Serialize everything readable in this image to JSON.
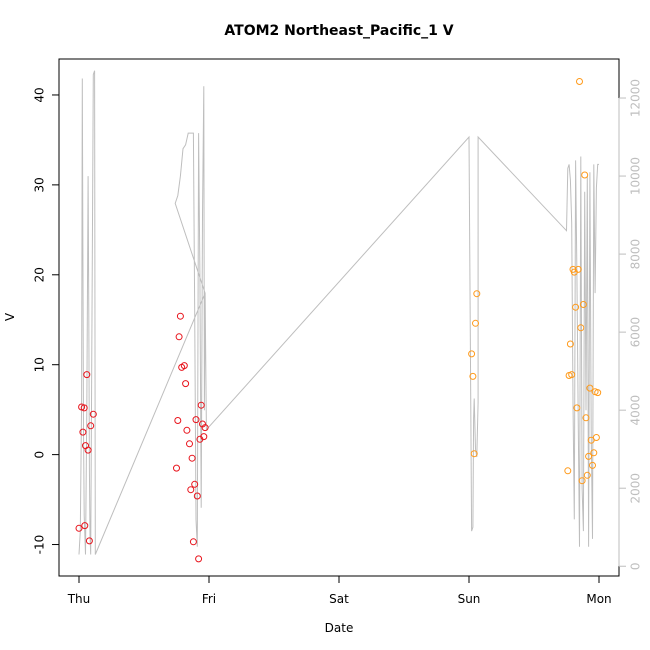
{
  "chart_data": {
    "type": "scatter",
    "title": "ATOM2 Northeast_Pacific_1 V",
    "xlabel": "Date",
    "ylabel": "V",
    "x_ticks": [
      "Thu",
      "Fri",
      "Sat",
      "Sun",
      "Mon"
    ],
    "x_range_days": [
      0,
      4
    ],
    "ylim": [
      -13.5,
      44
    ],
    "y_ticks": [
      -10,
      0,
      10,
      20,
      30,
      40
    ],
    "y2lim": [
      -250,
      13000
    ],
    "y2_ticks": [
      0,
      2000,
      4000,
      6000,
      8000,
      10000,
      12000
    ],
    "colors": {
      "red_points": "#e8141c",
      "orange_points": "#ff9a1a",
      "line": "#bebebe",
      "right_axis_text": "#bebebe"
    },
    "points_red": [
      [
        0.0,
        -8.2
      ],
      [
        0.02,
        5.3
      ],
      [
        0.03,
        2.5
      ],
      [
        0.04,
        5.2
      ],
      [
        0.045,
        -7.9
      ],
      [
        0.05,
        1.0
      ],
      [
        0.06,
        8.9
      ],
      [
        0.07,
        0.5
      ],
      [
        0.08,
        -9.6
      ],
      [
        0.09,
        3.2
      ],
      [
        0.11,
        4.5
      ],
      [
        0.75,
        -1.5
      ],
      [
        0.76,
        3.8
      ],
      [
        0.77,
        13.1
      ],
      [
        0.78,
        15.4
      ],
      [
        0.79,
        9.7
      ],
      [
        0.81,
        9.9
      ],
      [
        0.82,
        7.9
      ],
      [
        0.83,
        2.7
      ],
      [
        0.85,
        1.2
      ],
      [
        0.86,
        -3.9
      ],
      [
        0.87,
        -0.4
      ],
      [
        0.88,
        -9.7
      ],
      [
        0.89,
        -3.3
      ],
      [
        0.9,
        3.9
      ],
      [
        0.91,
        -4.6
      ],
      [
        0.92,
        -11.6
      ],
      [
        0.93,
        1.7
      ],
      [
        0.94,
        5.5
      ],
      [
        0.95,
        3.4
      ],
      [
        0.96,
        2.0
      ],
      [
        0.97,
        3.0
      ]
    ],
    "points_orange": [
      [
        3.02,
        11.2
      ],
      [
        3.03,
        8.7
      ],
      [
        3.04,
        0.1
      ],
      [
        3.05,
        14.6
      ],
      [
        3.06,
        17.9
      ],
      [
        3.76,
        -1.8
      ],
      [
        3.77,
        8.8
      ],
      [
        3.78,
        12.3
      ],
      [
        3.79,
        8.9
      ],
      [
        3.8,
        20.6
      ],
      [
        3.81,
        20.3
      ],
      [
        3.82,
        16.4
      ],
      [
        3.83,
        5.2
      ],
      [
        3.84,
        20.6
      ],
      [
        3.85,
        41.5
      ],
      [
        3.86,
        14.1
      ],
      [
        3.87,
        -2.9
      ],
      [
        3.88,
        16.7
      ],
      [
        3.89,
        31.1
      ],
      [
        3.9,
        4.1
      ],
      [
        3.91,
        -2.3
      ],
      [
        3.92,
        -0.2
      ],
      [
        3.93,
        7.4
      ],
      [
        3.94,
        1.6
      ],
      [
        3.95,
        -1.2
      ],
      [
        3.96,
        0.2
      ],
      [
        3.97,
        7.0
      ],
      [
        3.98,
        1.9
      ],
      [
        3.99,
        6.9
      ]
    ],
    "line_secondary": [
      [
        0.0,
        300
      ],
      [
        0.01,
        900
      ],
      [
        0.02,
        4200
      ],
      [
        0.025,
        12500
      ],
      [
        0.03,
        8000
      ],
      [
        0.035,
        3500
      ],
      [
        0.04,
        1300
      ],
      [
        0.05,
        300
      ],
      [
        0.06,
        4000
      ],
      [
        0.07,
        10000
      ],
      [
        0.075,
        6500
      ],
      [
        0.08,
        2500
      ],
      [
        0.085,
        800
      ],
      [
        0.09,
        300
      ],
      [
        0.11,
        12600
      ],
      [
        0.12,
        12700
      ],
      [
        0.125,
        300
      ],
      [
        0.125,
        300
      ],
      [
        0.97,
        7000
      ],
      [
        0.74,
        9300
      ],
      [
        0.76,
        9500
      ],
      [
        0.78,
        10000
      ],
      [
        0.8,
        10700
      ],
      [
        0.82,
        10800
      ],
      [
        0.84,
        11100
      ],
      [
        0.86,
        11100
      ],
      [
        0.88,
        11100
      ],
      [
        0.89,
        6500
      ],
      [
        0.9,
        1200
      ],
      [
        0.91,
        500
      ],
      [
        0.92,
        11100
      ],
      [
        0.93,
        7500
      ],
      [
        0.94,
        1500
      ],
      [
        0.95,
        9000
      ],
      [
        0.96,
        12300
      ],
      [
        0.965,
        4000
      ],
      [
        0.97,
        7000
      ],
      [
        0.98,
        3500
      ],
      [
        3.0,
        11000
      ],
      [
        3.02,
        900
      ],
      [
        3.03,
        1000
      ],
      [
        3.035,
        3800
      ],
      [
        3.04,
        4300
      ],
      [
        3.05,
        3000
      ],
      [
        3.06,
        2800
      ],
      [
        3.07,
        4200
      ],
      [
        3.07,
        11000
      ],
      [
        3.75,
        8600
      ],
      [
        3.76,
        10200
      ],
      [
        3.77,
        10300
      ],
      [
        3.78,
        9900
      ],
      [
        3.79,
        8800
      ],
      [
        3.8,
        4200
      ],
      [
        3.81,
        1200
      ],
      [
        3.82,
        10400
      ],
      [
        3.83,
        7500
      ],
      [
        3.84,
        3800
      ],
      [
        3.85,
        500
      ],
      [
        3.86,
        10500
      ],
      [
        3.87,
        2000
      ],
      [
        3.88,
        900
      ],
      [
        3.89,
        9600
      ],
      [
        3.9,
        4000
      ],
      [
        3.91,
        10000
      ],
      [
        3.92,
        500
      ],
      [
        3.93,
        10100
      ],
      [
        3.94,
        3500
      ],
      [
        3.95,
        700
      ],
      [
        3.96,
        10300
      ],
      [
        3.97,
        7000
      ],
      [
        3.98,
        9700
      ],
      [
        3.99,
        10300
      ],
      [
        4.0,
        10300
      ]
    ]
  }
}
